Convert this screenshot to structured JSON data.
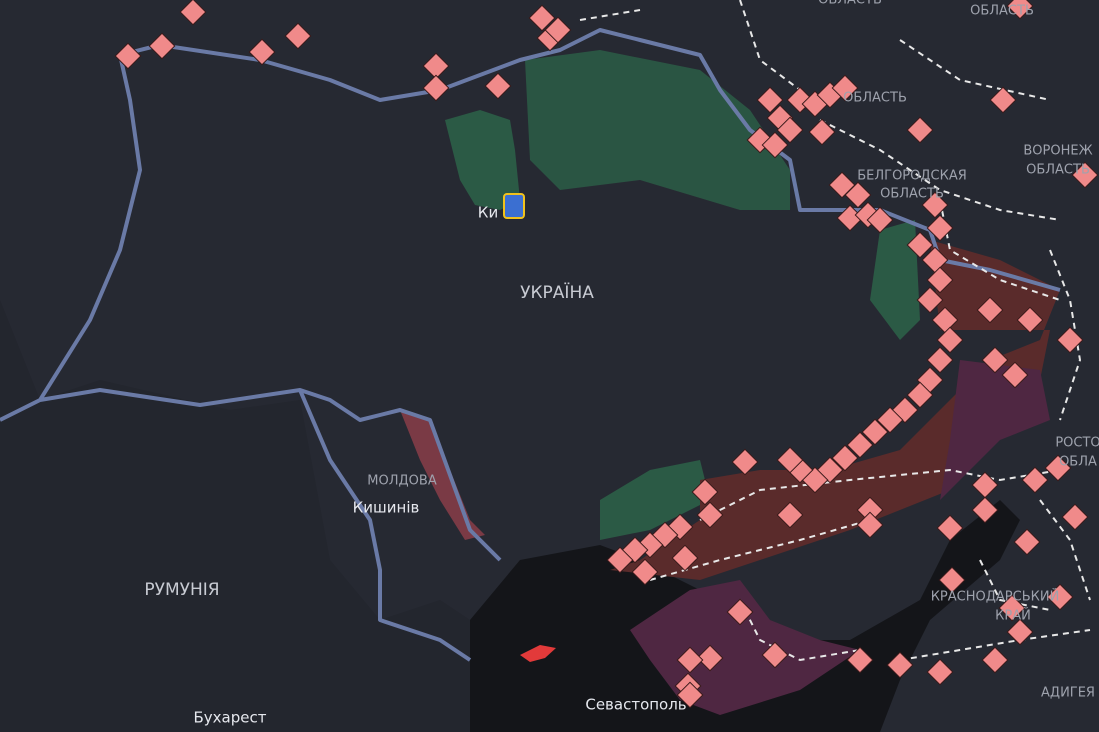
{
  "map": {
    "labels": [
      "ОБЛАСТЬ",
      "ОБЛАСТЬ",
      "ОБЛАСТЬ",
      "БЕЛГОРОДСКАЯ",
      "ОБЛАСТЬ",
      "ВОРОНЕЖ",
      "ОБЛАСТЬ",
      "Ки",
      "УКРАЇНА",
      "МОЛДОВА",
      "Кишинів",
      "РУМУНІЯ",
      "Бухарест",
      "Севастополь",
      "РОСТО",
      "ОБЛА",
      "КРАСНОДАРСЬКИЙ",
      "КРАЙ",
      "АДИГЕЯ"
    ]
  }
}
